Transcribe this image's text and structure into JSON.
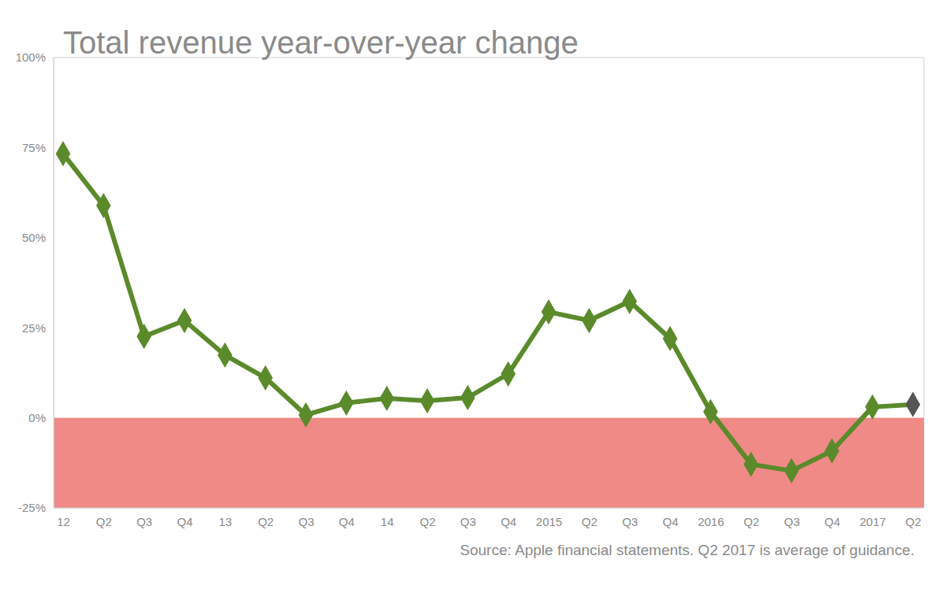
{
  "chart_data": {
    "type": "line",
    "title": "Total revenue year-over-year change",
    "source": "Source: Apple financial statements. Q2 2017 is average of guidance.",
    "categories": [
      "12",
      "Q2",
      "Q3",
      "Q4",
      "13",
      "Q2",
      "Q3",
      "Q4",
      "14",
      "Q2",
      "Q3",
      "Q4",
      "2015",
      "Q2",
      "Q3",
      "Q4",
      "2016",
      "Q2",
      "Q3",
      "Q4",
      "2017",
      "Q2"
    ],
    "values": [
      73.3,
      58.9,
      22.6,
      27.0,
      17.4,
      11.1,
      0.8,
      4.1,
      5.4,
      4.7,
      5.6,
      12.2,
      29.4,
      27.0,
      32.3,
      22.0,
      1.7,
      -12.9,
      -14.7,
      -9.2,
      3.0,
      3.7
    ],
    "color": "#5b8a2b",
    "colors": [
      "#5b8a2b",
      "#5b8a2b",
      "#5b8a2b",
      "#5b8a2b",
      "#5b8a2b",
      "#5b8a2b",
      "#5b8a2b",
      "#5b8a2b",
      "#5b8a2b",
      "#5b8a2b",
      "#5b8a2b",
      "#5b8a2b",
      "#5b8a2b",
      "#5b8a2b",
      "#5b8a2b",
      "#5b8a2b",
      "#5b8a2b",
      "#5b8a2b",
      "#5b8a2b",
      "#5b8a2b",
      "#5b8a2b",
      "#555555"
    ],
    "marker": "diamond",
    "bands": [
      {
        "from": -25,
        "to": 0,
        "color": "#ef8a86"
      }
    ],
    "ylim": [
      -25,
      100
    ],
    "yticks": [
      {
        "value": -25,
        "label": "-25%"
      },
      {
        "value": 0,
        "label": "0%"
      },
      {
        "value": 25,
        "label": "25%"
      },
      {
        "value": 50,
        "label": "50%"
      },
      {
        "value": 75,
        "label": "75%"
      },
      {
        "value": 100,
        "label": "100%"
      }
    ],
    "grid": false
  }
}
